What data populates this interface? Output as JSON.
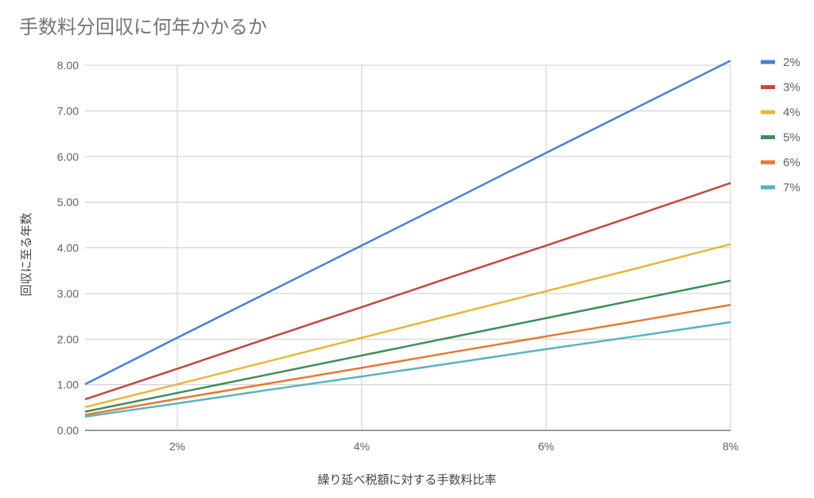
{
  "chart_data": {
    "type": "line",
    "title": "手数料分回収に何年かかるか",
    "xlabel": "繰り延べ税額に対する手数料比率",
    "ylabel": "回収に至る年数",
    "x": [
      1,
      2,
      3,
      4,
      5,
      6,
      7,
      8
    ],
    "x_unit": "%",
    "xlim": [
      1,
      8
    ],
    "x_ticks": [
      "2%",
      "4%",
      "6%",
      "8%"
    ],
    "x_tick_values": [
      2,
      4,
      6,
      8
    ],
    "ylim": [
      0,
      8
    ],
    "y_ticks": [
      "0.00",
      "1.00",
      "2.00",
      "3.00",
      "4.00",
      "5.00",
      "6.00",
      "7.00",
      "8.00"
    ],
    "grid": true,
    "legend_position": "right",
    "series": [
      {
        "name": "2%",
        "color": "#4a7fdc",
        "values": [
          1.01,
          2.03,
          3.04,
          4.05,
          5.06,
          6.08,
          7.09,
          8.1
        ]
      },
      {
        "name": "3%",
        "color": "#c1493c",
        "values": [
          0.68,
          1.35,
          2.03,
          2.7,
          3.38,
          4.05,
          4.73,
          5.42
        ]
      },
      {
        "name": "4%",
        "color": "#e8b63a",
        "values": [
          0.51,
          1.01,
          1.52,
          2.03,
          2.54,
          3.05,
          3.56,
          4.08
        ]
      },
      {
        "name": "5%",
        "color": "#3d8f5a",
        "values": [
          0.41,
          0.82,
          1.23,
          1.64,
          2.05,
          2.46,
          2.87,
          3.28
        ]
      },
      {
        "name": "6%",
        "color": "#e57a33",
        "values": [
          0.34,
          0.69,
          1.03,
          1.37,
          1.72,
          2.06,
          2.4,
          2.75
        ]
      },
      {
        "name": "7%",
        "color": "#5ab4bf",
        "values": [
          0.3,
          0.59,
          0.89,
          1.18,
          1.48,
          1.78,
          2.07,
          2.37
        ]
      }
    ]
  }
}
